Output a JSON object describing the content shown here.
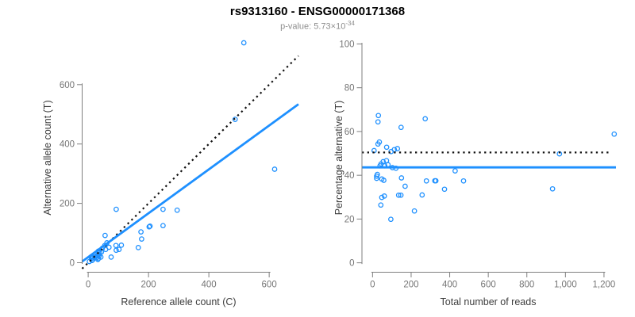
{
  "header": {
    "title": "rs9313160 - ENSG00000171368",
    "subtitle_prefix": "p-value: 5.73×10",
    "subtitle_exponent": "-34"
  },
  "colors": {
    "accent_blue": "#1e90ff",
    "dotted_black": "#111111",
    "axis_line_gray": "#7f7f7f",
    "tick_label_gray": "#757575",
    "axis_title_gray": "#3d3d3d"
  },
  "chart_data": [
    {
      "name": "allele-count-scatter",
      "type": "scatter",
      "xlabel": "Reference allele count (C)",
      "ylabel": "Alternative allele count (T)",
      "xtick_values": [
        0,
        200,
        400,
        600
      ],
      "xtick_labels": [
        "0",
        "200",
        "400",
        "600"
      ],
      "ytick_values": [
        0,
        200,
        400,
        600
      ],
      "ytick_labels": [
        "0",
        "200",
        "400",
        "600"
      ],
      "xlim": [
        -20,
        697
      ],
      "ylim": [
        -32,
        757
      ],
      "legend": "none",
      "grid": false,
      "points": [
        [
          516,
          741
        ],
        [
          487,
          483
        ],
        [
          618,
          315
        ],
        [
          93,
          180
        ],
        [
          248,
          180
        ],
        [
          295,
          177
        ],
        [
          205,
          123
        ],
        [
          248,
          125
        ],
        [
          56,
          92
        ],
        [
          175,
          104
        ],
        [
          177,
          80
        ],
        [
          10,
          20
        ],
        [
          10,
          18
        ],
        [
          13,
          15
        ],
        [
          16,
          19
        ],
        [
          34,
          39
        ],
        [
          55,
          58
        ],
        [
          62,
          67
        ],
        [
          4,
          4
        ],
        [
          47,
          49
        ],
        [
          30,
          25
        ],
        [
          38,
          34
        ],
        [
          24,
          20
        ],
        [
          35,
          28
        ],
        [
          44,
          36
        ],
        [
          22,
          17
        ],
        [
          58,
          45
        ],
        [
          69,
          52
        ],
        [
          13,
          8
        ],
        [
          15,
          10
        ],
        [
          13,
          8
        ],
        [
          36,
          22
        ],
        [
          30,
          18
        ],
        [
          92,
          58
        ],
        [
          202,
          121
        ],
        [
          110,
          59
        ],
        [
          93,
          42
        ],
        [
          102,
          45
        ],
        [
          34,
          14
        ],
        [
          42,
          19
        ],
        [
          32,
          11
        ],
        [
          166,
          51
        ],
        [
          76,
          19
        ]
      ],
      "lines": [
        {
          "name": "identity-line",
          "style": "dotted",
          "color": "#111111",
          "x1": -20,
          "y1": -20,
          "x2": 697,
          "y2": 697
        },
        {
          "name": "regression-line",
          "style": "solid",
          "color": "#1e90ff",
          "x1": -20,
          "y1": 4,
          "x2": 697,
          "y2": 534
        }
      ]
    },
    {
      "name": "percentage-scatter",
      "type": "scatter",
      "xlabel": "Total number of reads",
      "ylabel": "Percentage alternative (T)",
      "xtick_values": [
        0,
        200,
        400,
        600,
        800,
        1000,
        1200
      ],
      "xtick_labels": [
        "0",
        "200",
        "400",
        "600",
        "800",
        "1,000",
        "1,200"
      ],
      "ytick_values": [
        0,
        20,
        40,
        60,
        80,
        100
      ],
      "ytick_labels": [
        "0",
        "20",
        "40",
        "60",
        "80",
        "100"
      ],
      "xlim": [
        -55,
        1262
      ],
      "ylim": [
        -4.3,
        102.7
      ],
      "legend": "none",
      "grid": false,
      "points": [
        [
          1253,
          58.8
        ],
        [
          969,
          49.8
        ],
        [
          933,
          33.8
        ],
        [
          273,
          65.8
        ],
        [
          428,
          42.0
        ],
        [
          472,
          37.4
        ],
        [
          328,
          37.5
        ],
        [
          373,
          33.6
        ],
        [
          148,
          61.9
        ],
        [
          279,
          37.4
        ],
        [
          257,
          31.0
        ],
        [
          30,
          67.3
        ],
        [
          28,
          64.4
        ],
        [
          28,
          54.3
        ],
        [
          35,
          55.2
        ],
        [
          73,
          52.8
        ],
        [
          113,
          51.7
        ],
        [
          129,
          52.2
        ],
        [
          8,
          51.3
        ],
        [
          96,
          50.8
        ],
        [
          55,
          46.2
        ],
        [
          72,
          46.7
        ],
        [
          44,
          45.2
        ],
        [
          63,
          44.3
        ],
        [
          80,
          44.8
        ],
        [
          39,
          44.3
        ],
        [
          103,
          43.5
        ],
        [
          121,
          43.2
        ],
        [
          21,
          39.6
        ],
        [
          25,
          40.4
        ],
        [
          21,
          38.6
        ],
        [
          58,
          37.7
        ],
        [
          48,
          38.3
        ],
        [
          150,
          38.8
        ],
        [
          323,
          37.5
        ],
        [
          169,
          35.0
        ],
        [
          135,
          30.9
        ],
        [
          147,
          30.9
        ],
        [
          48,
          29.9
        ],
        [
          61,
          30.5
        ],
        [
          43,
          26.4
        ],
        [
          217,
          23.7
        ],
        [
          95,
          19.9
        ]
      ],
      "lines": [
        {
          "name": "expected-percentage-line",
          "style": "dotted",
          "color": "#111111",
          "x1": -55,
          "y1": 50.4,
          "x2": 1237,
          "y2": 50.4
        },
        {
          "name": "mean-percentage-line",
          "style": "solid",
          "color": "#1e90ff",
          "x1": -55,
          "y1": 43.6,
          "x2": 1262,
          "y2": 43.6
        }
      ]
    }
  ]
}
